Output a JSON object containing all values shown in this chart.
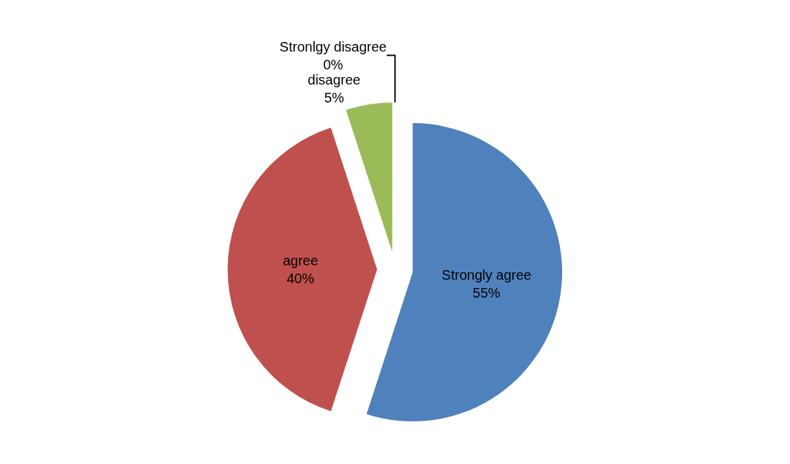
{
  "chart_data": {
    "type": "pie",
    "categories": [
      "Strongly agree",
      "agree",
      "disagree",
      "Stronlgy disagree"
    ],
    "values": [
      55,
      40,
      5,
      0
    ],
    "value_labels": [
      "55%",
      "40%",
      "5%",
      "0%"
    ],
    "colors": [
      "#4f81bd",
      "#c0504d",
      "#9bbb59",
      "#8064a2"
    ],
    "legend": false
  }
}
